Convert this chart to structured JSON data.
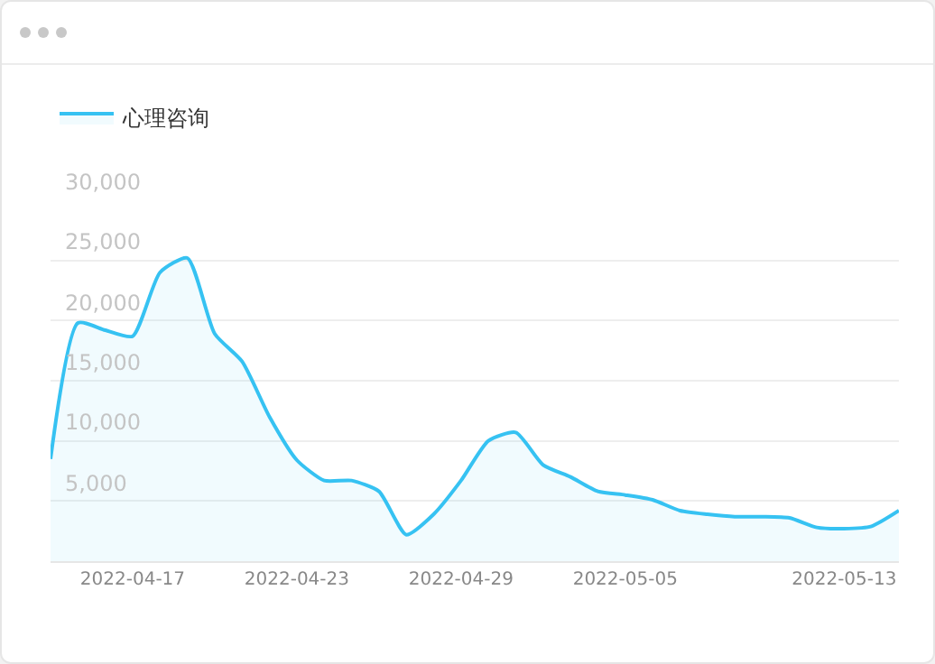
{
  "chart_data": {
    "type": "area",
    "x": [
      "2022-04-14",
      "2022-04-15",
      "2022-04-16",
      "2022-04-17",
      "2022-04-18",
      "2022-04-19",
      "2022-04-20",
      "2022-04-21",
      "2022-04-22",
      "2022-04-23",
      "2022-04-24",
      "2022-04-25",
      "2022-04-26",
      "2022-04-27",
      "2022-04-28",
      "2022-04-29",
      "2022-04-30",
      "2022-05-01",
      "2022-05-02",
      "2022-05-03",
      "2022-05-04",
      "2022-05-05",
      "2022-05-06",
      "2022-05-07",
      "2022-05-08",
      "2022-05-09",
      "2022-05-10",
      "2022-05-11",
      "2022-05-12",
      "2022-05-13",
      "2022-05-14",
      "2022-05-15"
    ],
    "series": [
      {
        "name": "心理咨询",
        "color": "#36c2f2",
        "values": [
          8500,
          19800,
          19200,
          18700,
          24000,
          25200,
          18900,
          16600,
          12000,
          8400,
          6700,
          6700,
          5800,
          2200,
          3900,
          6700,
          10000,
          10700,
          8000,
          7000,
          5800,
          5500,
          5100,
          4200,
          3900,
          3700,
          3700,
          3600,
          2800,
          2700,
          2900,
          4200
        ]
      }
    ],
    "xlim": [
      "2022-04-14",
      "2022-05-15"
    ],
    "xticks": [
      "2022-04-17",
      "2022-04-23",
      "2022-04-29",
      "2022-05-05",
      "2022-05-13"
    ],
    "ylim": [
      0,
      30000
    ],
    "yticks": [
      {
        "value": 5000,
        "label": "5,000"
      },
      {
        "value": 10000,
        "label": "10,000"
      },
      {
        "value": 15000,
        "label": "15,000"
      },
      {
        "value": 20000,
        "label": "20,000"
      },
      {
        "value": 25000,
        "label": "25,000"
      },
      {
        "value": 30000,
        "label": "30,000"
      }
    ],
    "grid": "y",
    "legend": "top left"
  }
}
